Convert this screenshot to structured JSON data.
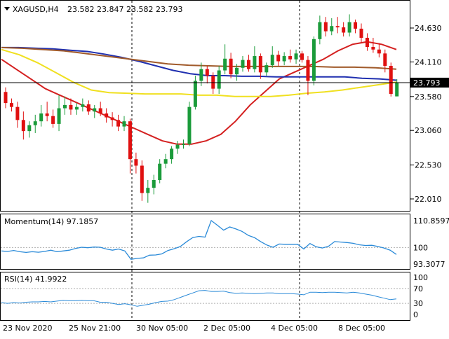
{
  "header": {
    "symbol": "XAGUSD,H4",
    "ohlc": "23.582 23.847 23.582 23.793"
  },
  "price_panel": {
    "y_ticks": [
      "24.630",
      "24.110",
      "23.580",
      "23.060",
      "22.530",
      "22.010"
    ],
    "current_price_label": "23.793"
  },
  "momentum_panel": {
    "title": "Momentum(14) 97.1857",
    "y_ticks": [
      "110.8597",
      "100",
      "93.3077"
    ]
  },
  "rsi_panel": {
    "title": "RSI(14) 41.9922",
    "y_ticks": [
      "100",
      "70",
      "30",
      "0"
    ]
  },
  "x_ticks": [
    "23 Nov 2020",
    "25 Nov 21:00",
    "30 Nov 05:00",
    "2 Dec 05:00",
    "4 Dec 05:00",
    "8 Dec 05:00"
  ],
  "colors": {
    "bull": "#1a9b3a",
    "bear": "#e01010",
    "sma_red": "#d42020",
    "sma_blue": "#2030b0",
    "sma_brown": "#a05a2a",
    "sma_yellow": "#f0e020",
    "indicator": "#2a8ad8",
    "grid": "#bfbfbf"
  },
  "chart_data": [
    {
      "type": "candlestick",
      "symbol": "XAGUSD",
      "timeframe": "H4",
      "y_ticks": [
        24.63,
        24.11,
        23.58,
        23.06,
        22.53,
        22.01
      ],
      "current_price": 23.793,
      "candles": [
        [
          23.65,
          23.72,
          23.4,
          23.48
        ],
        [
          23.48,
          23.55,
          23.35,
          23.42
        ],
        [
          23.42,
          23.5,
          23.1,
          23.22
        ],
        [
          23.22,
          23.35,
          22.92,
          23.05
        ],
        [
          23.05,
          23.2,
          22.95,
          23.14
        ],
        [
          23.14,
          23.3,
          23.02,
          23.2
        ],
        [
          23.2,
          23.45,
          23.12,
          23.32
        ],
        [
          23.32,
          23.5,
          23.2,
          23.28
        ],
        [
          23.28,
          23.38,
          23.1,
          23.16
        ],
        [
          23.16,
          23.6,
          23.05,
          23.4
        ],
        [
          23.4,
          23.58,
          23.3,
          23.45
        ],
        [
          23.45,
          23.55,
          23.3,
          23.38
        ],
        [
          23.38,
          23.48,
          23.3,
          23.42
        ],
        [
          23.42,
          23.55,
          23.35,
          23.46
        ],
        [
          23.46,
          23.52,
          23.3,
          23.35
        ],
        [
          23.35,
          23.45,
          23.25,
          23.4
        ],
        [
          23.4,
          23.5,
          23.28,
          23.32
        ],
        [
          23.32,
          23.4,
          23.18,
          23.26
        ],
        [
          23.26,
          23.34,
          23.12,
          23.22
        ],
        [
          23.22,
          23.3,
          23.05,
          23.12
        ],
        [
          23.12,
          23.28,
          23.05,
          23.2
        ],
        [
          23.2,
          23.24,
          22.4,
          22.62
        ],
        [
          22.62,
          22.72,
          22.4,
          22.52
        ],
        [
          22.52,
          22.6,
          21.98,
          22.1
        ],
        [
          22.1,
          22.3,
          21.95,
          22.18
        ],
        [
          22.18,
          22.38,
          22.08,
          22.3
        ],
        [
          22.3,
          22.62,
          22.25,
          22.55
        ],
        [
          22.55,
          22.7,
          22.48,
          22.62
        ],
        [
          22.62,
          22.82,
          22.55,
          22.78
        ],
        [
          22.78,
          22.9,
          22.7,
          22.84
        ],
        [
          22.84,
          22.92,
          22.78,
          22.85
        ],
        [
          22.85,
          23.5,
          22.82,
          23.42
        ],
        [
          23.42,
          23.9,
          23.38,
          23.82
        ],
        [
          23.82,
          24.1,
          23.74,
          24.0
        ],
        [
          24.0,
          24.05,
          23.78,
          23.9
        ],
        [
          23.9,
          23.95,
          23.62,
          23.7
        ],
        [
          23.7,
          24.05,
          23.62,
          23.98
        ],
        [
          23.98,
          24.38,
          23.92,
          24.16
        ],
        [
          24.16,
          24.25,
          23.86,
          23.92
        ],
        [
          23.92,
          24.08,
          23.82,
          24.02
        ],
        [
          24.02,
          24.2,
          23.96,
          24.14
        ],
        [
          24.14,
          24.22,
          23.96,
          24.0
        ],
        [
          24.0,
          24.35,
          23.95,
          24.2
        ],
        [
          24.2,
          24.24,
          23.85,
          23.95
        ],
        [
          23.95,
          24.1,
          23.9,
          24.06
        ],
        [
          24.06,
          24.35,
          24.02,
          24.22
        ],
        [
          24.22,
          24.28,
          24.05,
          24.12
        ],
        [
          24.12,
          24.26,
          24.06,
          24.2
        ],
        [
          24.2,
          24.3,
          24.1,
          24.15
        ],
        [
          24.15,
          24.3,
          24.08,
          24.24
        ],
        [
          24.24,
          24.28,
          24.1,
          24.14
        ],
        [
          24.14,
          24.2,
          23.6,
          23.82
        ],
        [
          23.82,
          24.5,
          23.75,
          24.46
        ],
        [
          24.46,
          24.82,
          24.38,
          24.72
        ],
        [
          24.72,
          24.8,
          24.5,
          24.58
        ],
        [
          24.58,
          24.78,
          24.52,
          24.66
        ],
        [
          24.66,
          24.8,
          24.55,
          24.64
        ],
        [
          24.64,
          24.72,
          24.5,
          24.56
        ],
        [
          24.56,
          24.84,
          24.5,
          24.72
        ],
        [
          24.72,
          24.76,
          24.55,
          24.62
        ],
        [
          24.62,
          24.7,
          24.4,
          24.48
        ],
        [
          24.48,
          24.55,
          24.28,
          24.34
        ],
        [
          24.34,
          24.48,
          24.25,
          24.3
        ],
        [
          24.3,
          24.4,
          24.18,
          24.24
        ],
        [
          24.24,
          24.3,
          23.95,
          24.05
        ],
        [
          24.05,
          24.1,
          23.58,
          23.62
        ],
        [
          23.582,
          23.847,
          23.582,
          23.793
        ]
      ],
      "moving_averages": [
        {
          "color": "red",
          "values": [
            24.15,
            24.0,
            23.85,
            23.7,
            23.6,
            23.5,
            23.4,
            23.3,
            23.2,
            23.1,
            23.0,
            22.9,
            22.85,
            22.85,
            22.9,
            23.0,
            23.2,
            23.45,
            23.65,
            23.85,
            23.95,
            24.05,
            24.15,
            24.28,
            24.38,
            24.42,
            24.38,
            24.3
          ]
        },
        {
          "color": "blue",
          "values": [
            24.33,
            24.33,
            24.32,
            24.31,
            24.29,
            24.27,
            24.23,
            24.18,
            24.12,
            24.05,
            23.98,
            23.93,
            23.9,
            23.9,
            23.89,
            23.89,
            23.88,
            23.88,
            23.88,
            23.88,
            23.88,
            23.86,
            23.85,
            23.83
          ]
        },
        {
          "color": "brown",
          "values": [
            24.33,
            24.32,
            24.3,
            24.28,
            24.24,
            24.2,
            24.16,
            24.12,
            24.08,
            24.06,
            24.05,
            24.04,
            24.04,
            24.04,
            24.04,
            24.04,
            24.03,
            24.03,
            24.02,
            24.0
          ]
        },
        {
          "color": "yellow",
          "values": [
            24.3,
            24.22,
            24.1,
            23.95,
            23.8,
            23.68,
            23.64,
            23.63,
            23.62,
            23.62,
            23.62,
            23.6,
            23.6,
            23.58,
            23.58,
            23.58,
            23.6,
            23.63,
            23.65,
            23.68,
            23.72,
            23.76,
            23.8
          ]
        }
      ]
    },
    {
      "type": "line",
      "name": "Momentum(14)",
      "last_value": 97.1857,
      "ylim": [
        93.3077,
        110.8597
      ],
      "reference_level": 100,
      "values": [
        98.6,
        98.4,
        98.8,
        98.3,
        98.0,
        98.3,
        98.1,
        98.4,
        98.9,
        98.3,
        98.6,
        98.9,
        99.6,
        100.1,
        99.9,
        100.2,
        100.1,
        99.4,
        98.9,
        99.4,
        98.6,
        95.2,
        95.6,
        95.8,
        96.9,
        97.0,
        97.4,
        98.8,
        99.5,
        100.4,
        102.3,
        104.0,
        104.5,
        104.2,
        110.9,
        109.0,
        107.0,
        108.3,
        107.5,
        106.5,
        104.9,
        104.0,
        102.4,
        101.0,
        100.1,
        101.4,
        101.3,
        101.3,
        101.3,
        99.4,
        101.6,
        100.3,
        99.8,
        100.5,
        102.4,
        102.2,
        102.0,
        101.7,
        101.1,
        100.8,
        100.9,
        100.4,
        99.8,
        98.9,
        97.2
      ]
    },
    {
      "type": "line",
      "name": "RSI(14)",
      "last_value": 41.9922,
      "ylim": [
        0,
        100
      ],
      "levels": [
        70,
        30
      ],
      "values": [
        32,
        30,
        32,
        31,
        33,
        34,
        34,
        35,
        34,
        36,
        38,
        37,
        37,
        38,
        37,
        37,
        33,
        33,
        30,
        27,
        29,
        26,
        22,
        25,
        28,
        32,
        35,
        36,
        40,
        46,
        52,
        58,
        64,
        65,
        62,
        62,
        63,
        59,
        57,
        58,
        57,
        56,
        57,
        58,
        58,
        56,
        56,
        56,
        55,
        53,
        60,
        60,
        59,
        60,
        60,
        59,
        58,
        60,
        58,
        55,
        52,
        48,
        44,
        40,
        42
      ]
    }
  ]
}
